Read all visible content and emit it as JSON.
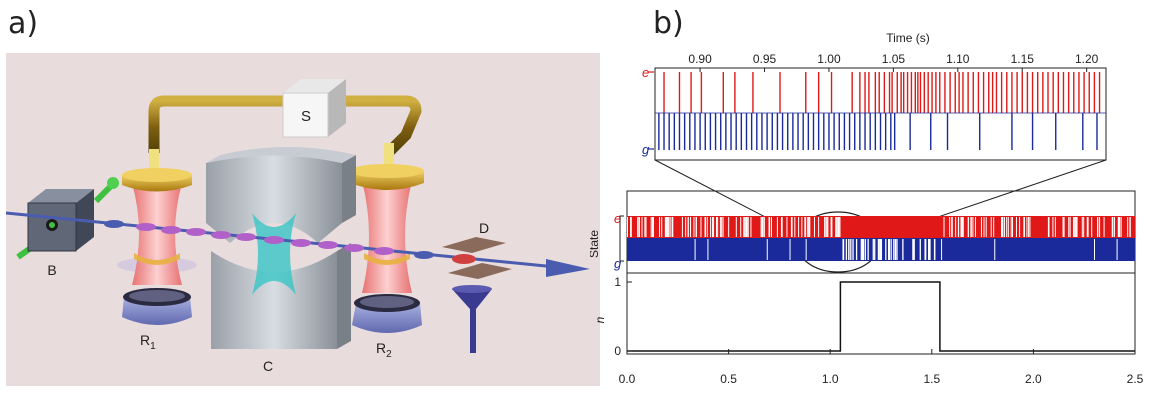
{
  "figure": {
    "panel_a_label": "a)",
    "panel_b_label": "b)"
  },
  "apparatus": {
    "labels": {
      "source": "S",
      "box": "B",
      "cavity": "C",
      "detector": "D",
      "r1_main": "R",
      "r1_sub": "1",
      "r2_main": "R",
      "r2_sub": "2"
    },
    "colors": {
      "background": "#e8dcdc",
      "beam": "#4a5cb0",
      "atom": "#b060c8",
      "cavity_field": "#2ec4c4",
      "ramsey_field": "#e87070",
      "gold": "#c9a020",
      "plate": "#8088c8"
    }
  },
  "chart_data": [
    {
      "type": "line",
      "panel": "inset",
      "xlabel": "Time (s)",
      "x_axis_position": "top",
      "xlim": [
        0.865,
        1.215
      ],
      "x_ticks": [
        "0.90",
        "0.95",
        "1.00",
        "1.05",
        "1.10",
        "1.15",
        "1.20"
      ],
      "state_labels": [
        "e",
        "g"
      ],
      "series": [
        {
          "name": "e",
          "color": "#e01818",
          "x": [
            0.872,
            0.884,
            0.893,
            0.901,
            0.918,
            0.927,
            0.941,
            0.962,
            0.982,
            0.992,
            1.002,
            1.018,
            1.024,
            1.028,
            1.031,
            1.036,
            1.039,
            1.043,
            1.047,
            1.049,
            1.053,
            1.056,
            1.058,
            1.061,
            1.064,
            1.067,
            1.069,
            1.071,
            1.074,
            1.077,
            1.08,
            1.083,
            1.086,
            1.09,
            1.094,
            1.098,
            1.101,
            1.104,
            1.108,
            1.112,
            1.116,
            1.12,
            1.124,
            1.127,
            1.13,
            1.134,
            1.138,
            1.142,
            1.146,
            1.15,
            1.154,
            1.158,
            1.162,
            1.166,
            1.17,
            1.174,
            1.178,
            1.182,
            1.186,
            1.19,
            1.194,
            1.198,
            1.202,
            1.206,
            1.21
          ]
        },
        {
          "name": "g",
          "color": "#1a2a9a",
          "x": [
            0.868,
            0.872,
            0.876,
            0.88,
            0.884,
            0.888,
            0.892,
            0.896,
            0.9,
            0.904,
            0.908,
            0.912,
            0.916,
            0.92,
            0.924,
            0.928,
            0.932,
            0.936,
            0.94,
            0.944,
            0.948,
            0.952,
            0.956,
            0.96,
            0.964,
            0.968,
            0.972,
            0.976,
            0.98,
            0.984,
            0.988,
            0.992,
            0.996,
            1.0,
            1.004,
            1.008,
            1.012,
            1.016,
            1.02,
            1.024,
            1.028,
            1.032,
            1.036,
            1.04,
            1.044,
            1.048,
            1.051,
            1.063,
            1.079,
            1.092,
            1.117,
            1.142,
            1.158,
            1.176,
            1.197,
            1.208
          ]
        }
      ]
    },
    {
      "type": "line",
      "panel": "main",
      "xlabel": "",
      "ylabel_top": "State",
      "ylabel_bottom": "n",
      "xlim": [
        0.0,
        2.5
      ],
      "x_ticks": [
        "0.0",
        "0.5",
        "1.0",
        "1.5",
        "2.0",
        "2.5"
      ],
      "y_ticks_n": [
        "0",
        "1"
      ],
      "state_labels": [
        "e",
        "g"
      ],
      "photon_number": {
        "x": [
          0.0,
          1.05,
          1.05,
          1.54,
          1.54,
          2.5
        ],
        "y": [
          0,
          0,
          1,
          1,
          0,
          0
        ]
      },
      "excited_dense_range": [
        1.05,
        1.54
      ],
      "series": [
        {
          "name": "e",
          "color": "#e01818"
        },
        {
          "name": "g",
          "color": "#1a2a9a"
        }
      ]
    }
  ]
}
